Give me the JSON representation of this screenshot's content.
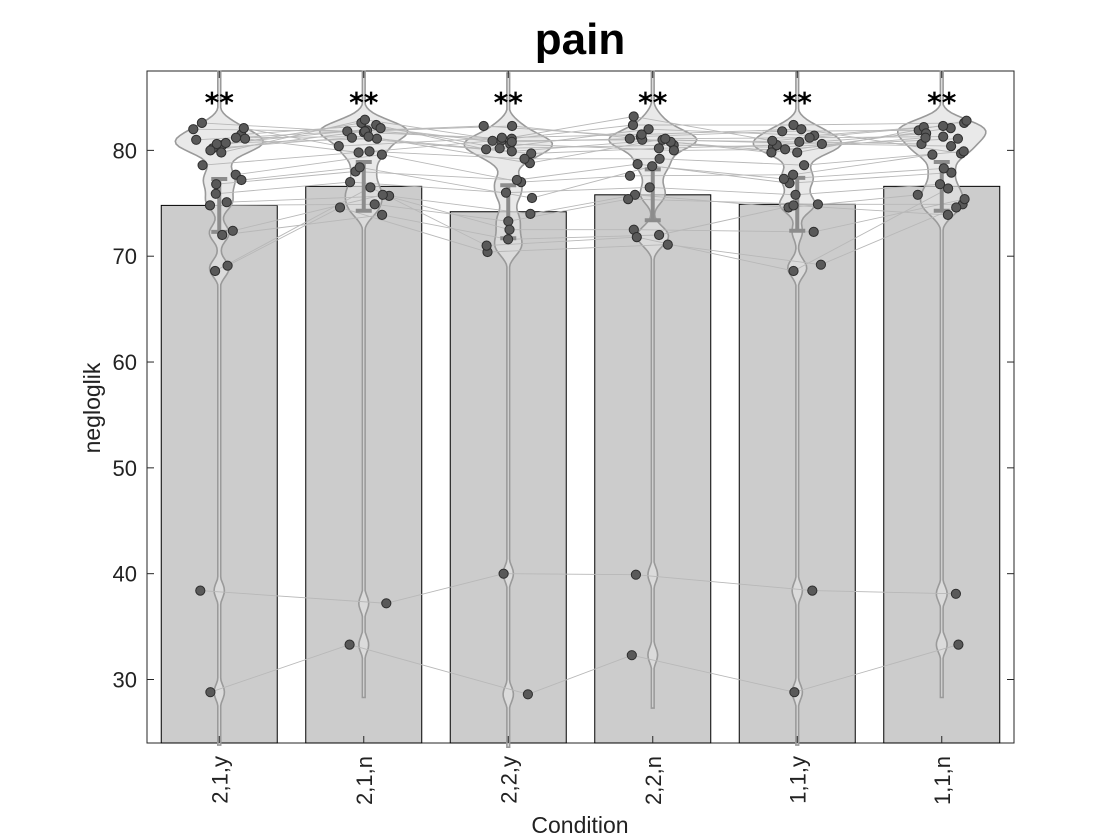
{
  "chart_data": {
    "type": "bar",
    "title": "pain",
    "xlabel": "Condition",
    "ylabel": "negloglik",
    "ylim": [
      24,
      87.5
    ],
    "yticks": [
      30,
      40,
      50,
      60,
      70,
      80
    ],
    "categories": [
      "2,1,y",
      "2,1,n",
      "2,2,y",
      "2,2,n",
      "1,1,y",
      "1,1,n"
    ],
    "series": [
      {
        "values": [
          74.8,
          76.6,
          74.2,
          75.8,
          74.9,
          76.6
        ]
      }
    ],
    "error_bars": [
      [
        72.3,
        77.3
      ],
      [
        74.3,
        78.9
      ],
      [
        71.7,
        76.7
      ],
      [
        73.4,
        78.2
      ],
      [
        72.4,
        77.4
      ],
      [
        74.3,
        78.9
      ]
    ],
    "significance": [
      "**",
      "**",
      "**",
      "**",
      "**",
      "**"
    ],
    "subjects": [
      [
        82.0,
        81.8,
        82.3,
        81.3,
        81.8,
        81.9
      ],
      [
        81.5,
        82.4,
        80.1,
        82.0,
        81.4,
        82.2
      ],
      [
        81.0,
        81.9,
        80.9,
        81.0,
        80.8,
        80.6
      ],
      [
        80.5,
        82.6,
        80.2,
        80.5,
        80.3,
        81.1
      ],
      [
        80.2,
        81.2,
        79.7,
        80.2,
        80.5,
        81.6
      ],
      [
        80.6,
        82.1,
        80.6,
        80.0,
        80.1,
        81.2
      ],
      [
        80.7,
        81.1,
        79.9,
        81.0,
        80.6,
        80.4
      ],
      [
        82.6,
        81.7,
        81.1,
        82.4,
        82.4,
        82.6
      ],
      [
        80.0,
        81.8,
        82.3,
        80.8,
        79.8,
        82.1
      ],
      [
        79.8,
        82.9,
        80.8,
        81.1,
        79.8,
        82.8
      ],
      [
        82.1,
        80.4,
        81.2,
        81.5,
        82.0,
        79.7
      ],
      [
        81.2,
        81.3,
        78.8,
        81.1,
        81.2,
        81.3
      ],
      [
        78.6,
        79.9,
        79.2,
        79.2,
        78.6,
        79.9
      ],
      [
        81.1,
        79.8,
        80.9,
        83.2,
        80.9,
        82.3
      ],
      [
        77.7,
        79.6,
        77.0,
        77.6,
        77.7,
        79.6
      ],
      [
        76.8,
        78.0,
        77.2,
        78.7,
        76.9,
        77.9
      ],
      [
        77.2,
        78.4,
        75.5,
        78.5,
        77.3,
        78.3
      ],
      [
        75.9,
        77.0,
        76.0,
        76.5,
        75.8,
        76.8
      ],
      [
        75.1,
        75.7,
        74.0,
        75.8,
        74.6,
        75.8
      ],
      [
        74.8,
        74.9,
        73.3,
        75.4,
        74.9,
        74.9
      ],
      [
        72.4,
        75.8,
        72.5,
        72.5,
        72.3,
        75.4
      ],
      [
        72.0,
        73.9,
        71.6,
        72.0,
        74.8,
        73.9
      ],
      [
        69.1,
        74.6,
        70.4,
        71.1,
        69.2,
        74.6
      ],
      [
        68.6,
        76.5,
        71.0,
        71.8,
        68.6,
        76.4
      ],
      [
        38.4,
        37.2,
        40.0,
        39.9,
        38.4,
        38.1
      ],
      [
        28.8,
        33.3,
        28.6,
        32.3,
        28.8,
        33.3
      ]
    ],
    "grid": false,
    "legend": "none"
  }
}
